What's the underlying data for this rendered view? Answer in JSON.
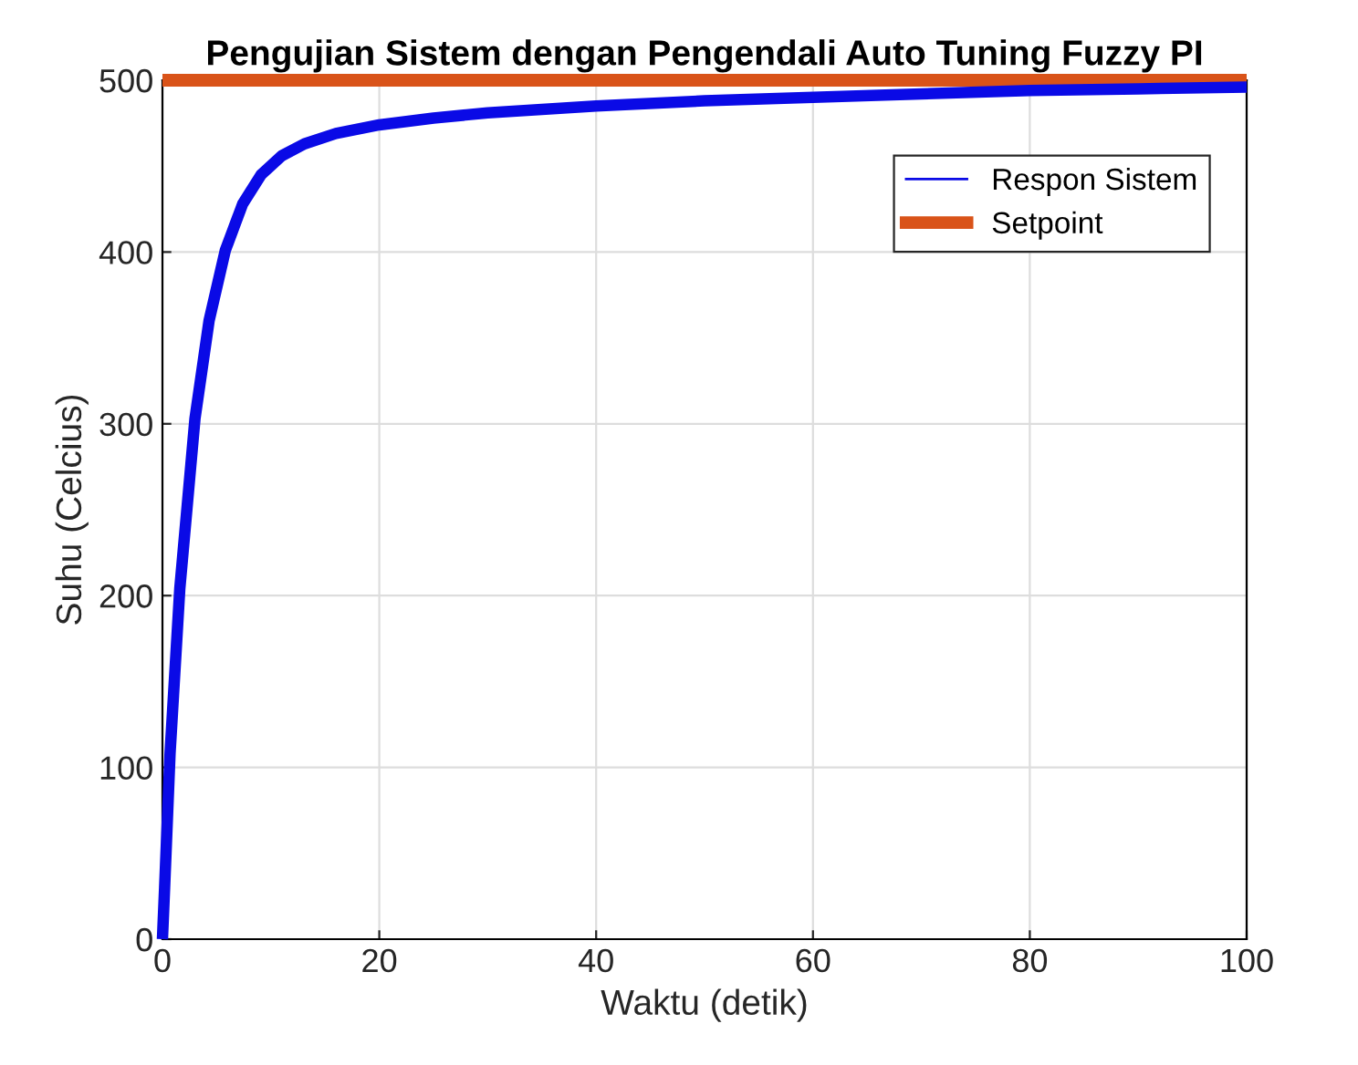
{
  "chart_data": {
    "type": "line",
    "title": "Pengujian Sistem dengan Pengendali Auto Tuning Fuzzy PI",
    "xlabel": "Waktu (detik)",
    "ylabel": "Suhu (Celcius)",
    "series": [
      {
        "name": "Respon Sistem",
        "color": "#0a0ae6",
        "x": [
          0,
          0.2,
          0.7,
          1.6,
          3,
          4.3,
          5.8,
          7.4,
          9.1,
          11,
          13.1,
          16,
          20,
          25,
          30,
          40,
          50,
          60,
          70,
          80,
          90,
          100
        ],
        "values": [
          0,
          30,
          108,
          204,
          303,
          360,
          401,
          428,
          445,
          456,
          463,
          469,
          474,
          478,
          481,
          485,
          488,
          490,
          492,
          494,
          495,
          496
        ]
      },
      {
        "name": "Setpoint",
        "color": "#d95319",
        "x": [
          0,
          100
        ],
        "values": [
          500,
          500
        ]
      }
    ],
    "xlim": [
      0,
      100
    ],
    "ylim": [
      0,
      500
    ],
    "xticks": [
      0,
      20,
      40,
      60,
      80,
      100
    ],
    "yticks": [
      0,
      100,
      200,
      300,
      400,
      500
    ],
    "grid": true,
    "legend": "top right",
    "line_style": "solid",
    "marker": "none"
  }
}
